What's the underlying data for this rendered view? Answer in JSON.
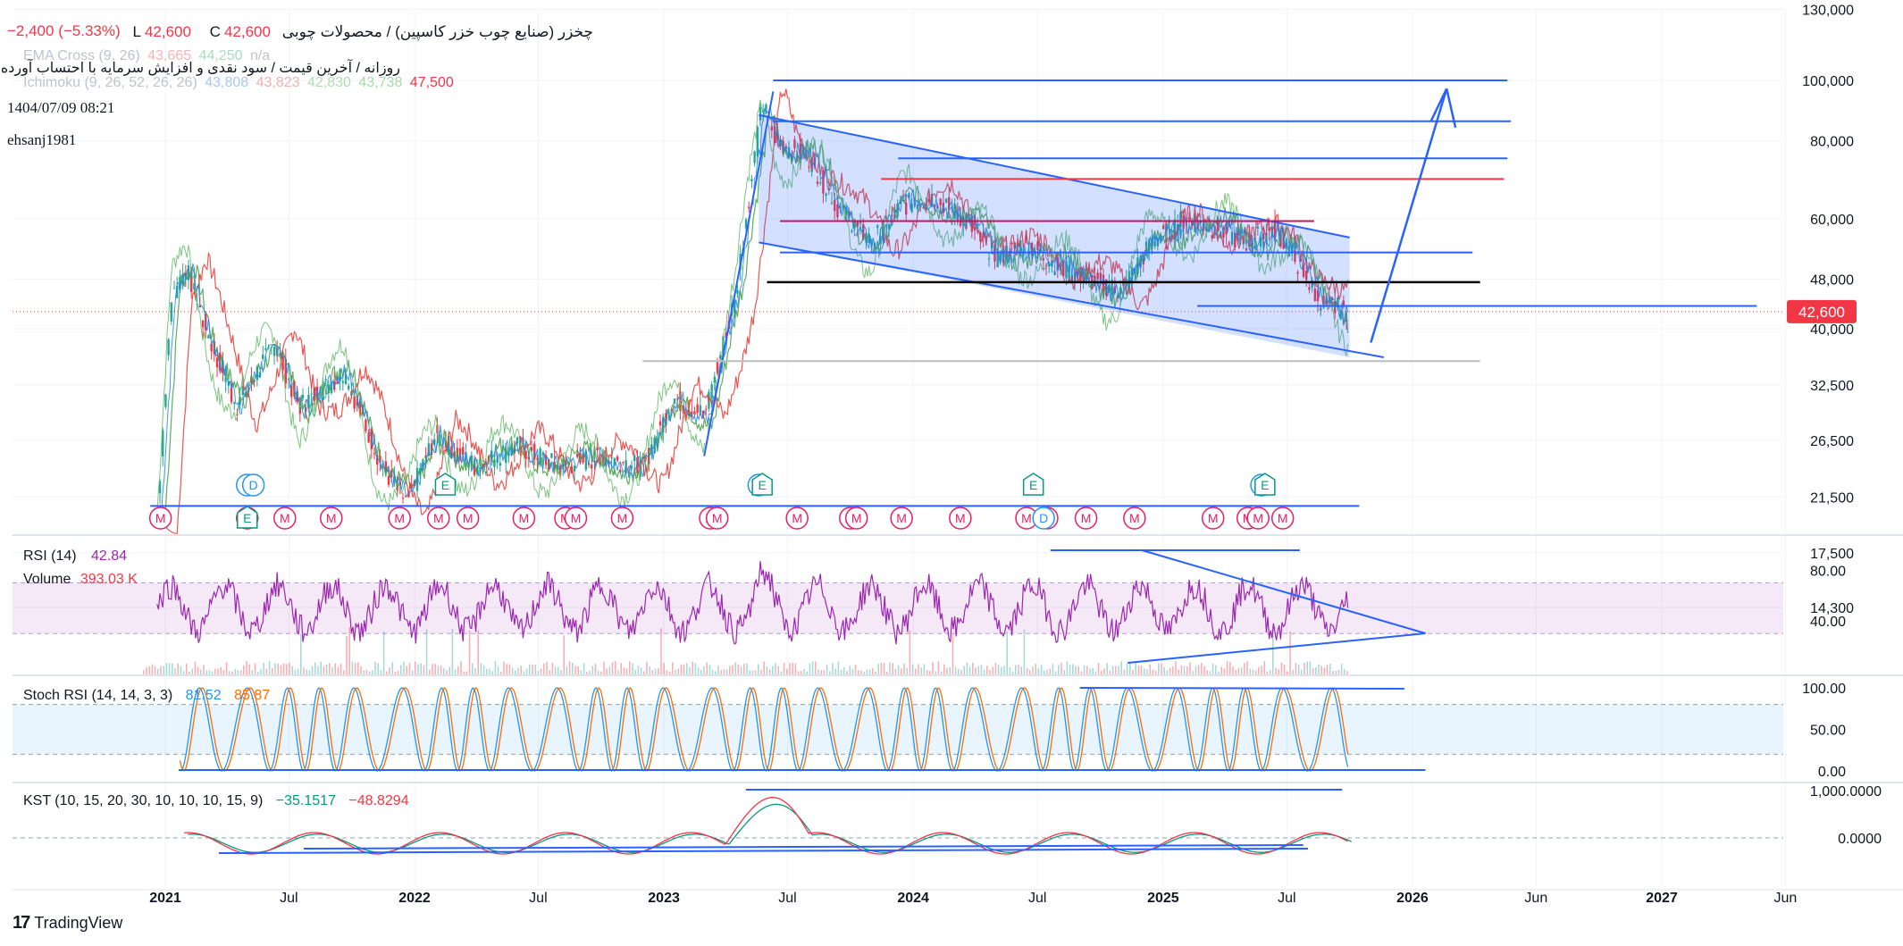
{
  "header": {
    "symbol_fa": "چخزر (صنایع چوب خزر کاسپین) / محصولات چوبی",
    "low_label": "L",
    "low_value": "42,600",
    "close_label": "C",
    "close_value": "42,600",
    "change": "−2,400 (−5.33%)",
    "ema_label": "EMA Cross (9, 26)",
    "ema_v1": "43,665",
    "ema_v2": "44,250",
    "ema_v3": "n/a",
    "subtitle_fa": "روزانه / آخرین قیمت / سود نقدی و افزایش سرمایه با احتساب آورده",
    "ichimoku_label": "Ichimoku (9, 26, 52, 26, 26)",
    "ichimoku_v1": "43,808",
    "ichimoku_v2": "43,823",
    "ichimoku_v3": "42,830",
    "ichimoku_v4": "43,738",
    "ichimoku_v5": "47,500",
    "date": "1404/07/09 08:21",
    "author": "ehsanj1981"
  },
  "colors": {
    "up": "#26a69a",
    "down": "#f23645",
    "drawing": "#2962ff",
    "rsi": "#9c27b0",
    "stoch_k": "#2196f3",
    "stoch_d": "#ff6d00",
    "kst": "#f23645",
    "kst_signal": "#089981",
    "ichimoku_green": "#43a047",
    "ichimoku_red": "#e53935",
    "earnings_badge": "#089981",
    "dividend_badge": "#2196f3",
    "marker_badge": "#e91e63"
  },
  "chart_data": [
    {
      "type": "candlestick",
      "title": "چخزر (صنایع چوب خزر کاسپین) / محصولات چوبی",
      "scale": "log",
      "ylim": [
        13000,
        140000
      ],
      "y_ticks": [
        "130,000",
        "100,000",
        "80,000",
        "60,000",
        "48,000",
        "40,000",
        "32,500",
        "26,500",
        "21,500",
        "17,500",
        "14,300"
      ],
      "x_ticks": [
        "2021",
        "Jul",
        "2022",
        "Jul",
        "2023",
        "Jul",
        "2024",
        "Jul",
        "2025",
        "Jul",
        "2026",
        "Jun",
        "2027",
        "Jun"
      ],
      "last_price": "42,600",
      "price_path": [
        [
          "2020-12-20",
          20000
        ],
        [
          "2021-01-10",
          45000
        ],
        [
          "2021-02-01",
          50000
        ],
        [
          "2021-03-01",
          40000
        ],
        [
          "2021-04-15",
          30000
        ],
        [
          "2021-06-10",
          38000
        ],
        [
          "2021-07-15",
          30000
        ],
        [
          "2021-09-20",
          34000
        ],
        [
          "2021-11-15",
          24000
        ],
        [
          "2021-12-20",
          21000
        ],
        [
          "2022-02-01",
          27000
        ],
        [
          "2022-04-01",
          24000
        ],
        [
          "2022-06-01",
          26000
        ],
        [
          "2022-08-01",
          24000
        ],
        [
          "2022-10-01",
          25000
        ],
        [
          "2022-12-01",
          24000
        ],
        [
          "2023-01-15",
          31000
        ],
        [
          "2023-03-01",
          29000
        ],
        [
          "2023-04-15",
          45000
        ],
        [
          "2023-05-25",
          92000
        ],
        [
          "2023-06-15",
          80000
        ],
        [
          "2023-08-01",
          75000
        ],
        [
          "2023-09-15",
          62000
        ],
        [
          "2023-11-01",
          55000
        ],
        [
          "2023-12-15",
          63000
        ],
        [
          "2024-02-01",
          65000
        ],
        [
          "2024-03-15",
          60000
        ],
        [
          "2024-05-01",
          52000
        ],
        [
          "2024-06-15",
          55000
        ],
        [
          "2024-08-01",
          50000
        ],
        [
          "2024-09-15",
          48000
        ],
        [
          "2024-11-01",
          46000
        ],
        [
          "2024-12-15",
          55000
        ],
        [
          "2025-02-01",
          60000
        ],
        [
          "2025-03-15",
          58000
        ],
        [
          "2025-05-01",
          55000
        ],
        [
          "2025-06-15",
          58000
        ],
        [
          "2025-07-20",
          50000
        ],
        [
          "2025-08-20",
          44000
        ],
        [
          "2025-09-30",
          42600
        ]
      ],
      "events": {
        "D": [
          "2021-05-01",
          "2021-05-10",
          "2023-05-20",
          "2024-07-10",
          "2025-05-25"
        ],
        "E": [
          "2021-05-01",
          "2022-02-15",
          "2023-05-25",
          "2024-06-25",
          "2025-05-30"
        ],
        "M": [
          "2020-12-25",
          "2021-05-01",
          "2021-06-25",
          "2021-09-01",
          "2021-12-10",
          "2022-02-05",
          "2022-03-20",
          "2022-06-10",
          "2022-08-10",
          "2022-08-25",
          "2022-11-01",
          "2023-03-10",
          "2023-03-20",
          "2023-07-15",
          "2023-10-01",
          "2023-10-10",
          "2023-12-15",
          "2024-03-10",
          "2024-06-15",
          "2024-07-15",
          "2024-09-10",
          "2024-11-20",
          "2025-03-15",
          "2025-05-05",
          "2025-05-20",
          "2025-06-25"
        ]
      }
    },
    {
      "type": "line",
      "title": "RSI (14)",
      "value": "42.84",
      "ylim": [
        0,
        100
      ],
      "y_ticks": [
        "80.00",
        "40.00"
      ],
      "bands": [
        70,
        30
      ]
    },
    {
      "type": "bar",
      "title": "Volume",
      "value": "393.03 K"
    },
    {
      "type": "line",
      "title": "Stoch RSI (14, 14, 3, 3)",
      "series": [
        {
          "name": "K",
          "last": "81.52"
        },
        {
          "name": "D",
          "last": "85.87"
        }
      ],
      "ylim": [
        0,
        100
      ],
      "y_ticks": [
        "100.00",
        "50.00",
        "0.00"
      ],
      "bands": [
        80,
        20
      ]
    },
    {
      "type": "line",
      "title": "KST (10, 15, 20, 30, 10, 10, 10, 15, 9)",
      "series": [
        {
          "name": "KST",
          "last": "−35.1517"
        },
        {
          "name": "Signal",
          "last": "−48.8294"
        }
      ],
      "y_ticks": [
        "1,000.0000",
        "0.0000"
      ]
    }
  ],
  "footer": {
    "brand": "TradingView"
  }
}
